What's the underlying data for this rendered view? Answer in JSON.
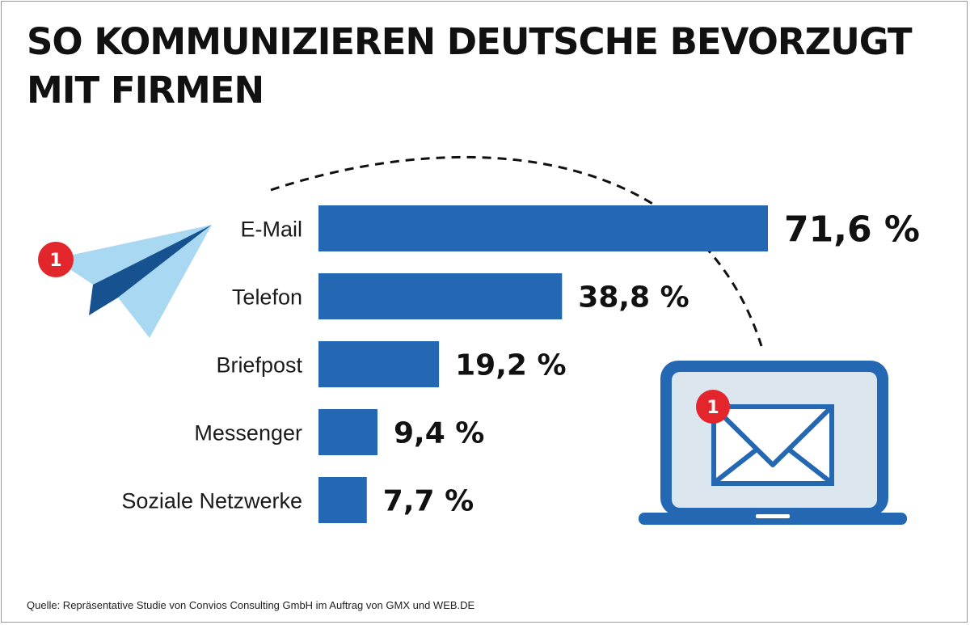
{
  "chart_data": {
    "type": "bar",
    "orientation": "horizontal",
    "title_lines": [
      "SO KOMMUNIZIEREN DEUTSCHE BEVORZUGT",
      "MIT FIRMEN"
    ],
    "categories": [
      "E-Mail",
      "Telefon",
      "Briefpost",
      "Messenger",
      "Soziale Netzwerke"
    ],
    "values": [
      71.6,
      38.8,
      19.2,
      9.4,
      7.7
    ],
    "value_labels": [
      "71,6 %",
      "38,8 %",
      "19,2 %",
      "9,4 %",
      "7,7 %"
    ],
    "unit": "%",
    "xlim": [
      0,
      71.6
    ],
    "grid": false,
    "legend": "none",
    "bar_color": "#2467b3"
  },
  "source": "Quelle: Repräsentative Studie von Convios Consulting GmbH im Auftrag von GMX und WEB.DE",
  "badges": {
    "plane": "1",
    "envelope": "1"
  },
  "colors": {
    "badge": "#e3262b",
    "plane_light": "#a9d8f2",
    "plane_dark": "#15528f",
    "laptop": "#2467b3",
    "laptop_screen": "#dce6ef"
  },
  "icons": {
    "plane": "paper-plane-icon",
    "laptop": "laptop-icon",
    "envelope": "envelope-icon"
  }
}
